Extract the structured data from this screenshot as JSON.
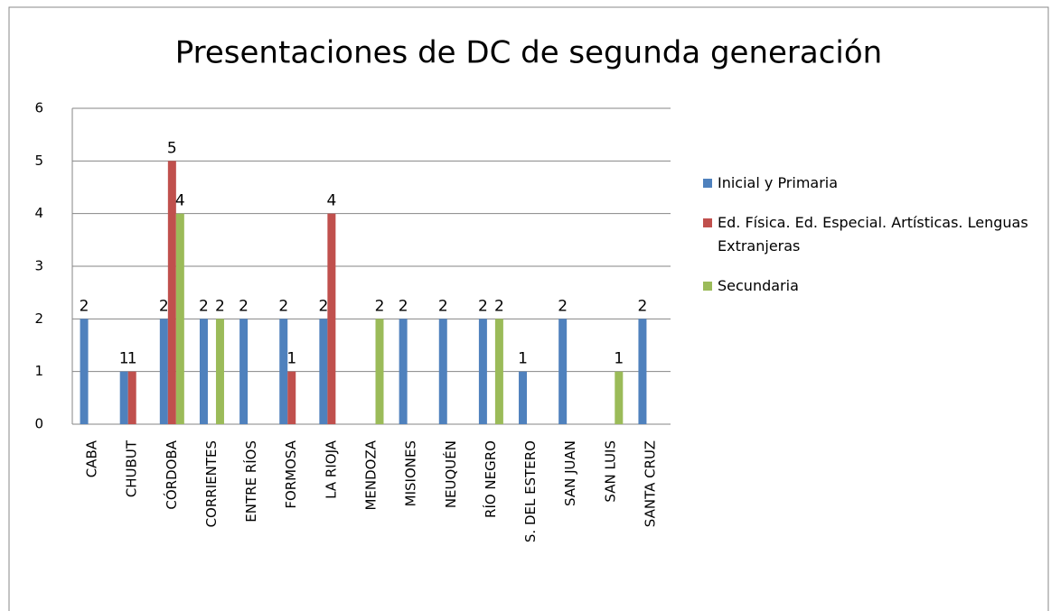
{
  "chart_data": {
    "type": "bar",
    "title": "Presentaciones de DC de segunda generación",
    "categories": [
      "CABA",
      "CHUBUT",
      "CÓRDOBA",
      "CORRIENTES",
      "ENTRE RÍOS",
      "FORMOSA",
      "LA RIOJA",
      "MENDOZA",
      "MISIONES",
      "NEUQUÉN",
      "RÍO NEGRO",
      "S. DEL ESTERO",
      "SAN JUAN",
      "SAN LUIS",
      "SANTA CRUZ"
    ],
    "series": [
      {
        "name": "Inicial y Primaria",
        "color": "#4f81bd",
        "values": [
          2,
          1,
          2,
          2,
          2,
          2,
          2,
          null,
          2,
          2,
          2,
          1,
          2,
          null,
          2
        ]
      },
      {
        "name": "Ed. Física. Ed. Especial. Artísticas. Lenguas Extranjeras",
        "color": "#c0504d",
        "values": [
          null,
          1,
          5,
          null,
          null,
          1,
          4,
          null,
          null,
          null,
          null,
          null,
          null,
          null,
          null
        ]
      },
      {
        "name": "Secundaria",
        "color": "#9bbb59",
        "values": [
          null,
          null,
          4,
          2,
          null,
          null,
          null,
          2,
          null,
          null,
          2,
          null,
          null,
          1,
          null
        ]
      }
    ],
    "ylim": [
      0,
      6
    ],
    "yticks": [
      0,
      1,
      2,
      3,
      4,
      5,
      6
    ],
    "grid": true,
    "legend": "right"
  }
}
